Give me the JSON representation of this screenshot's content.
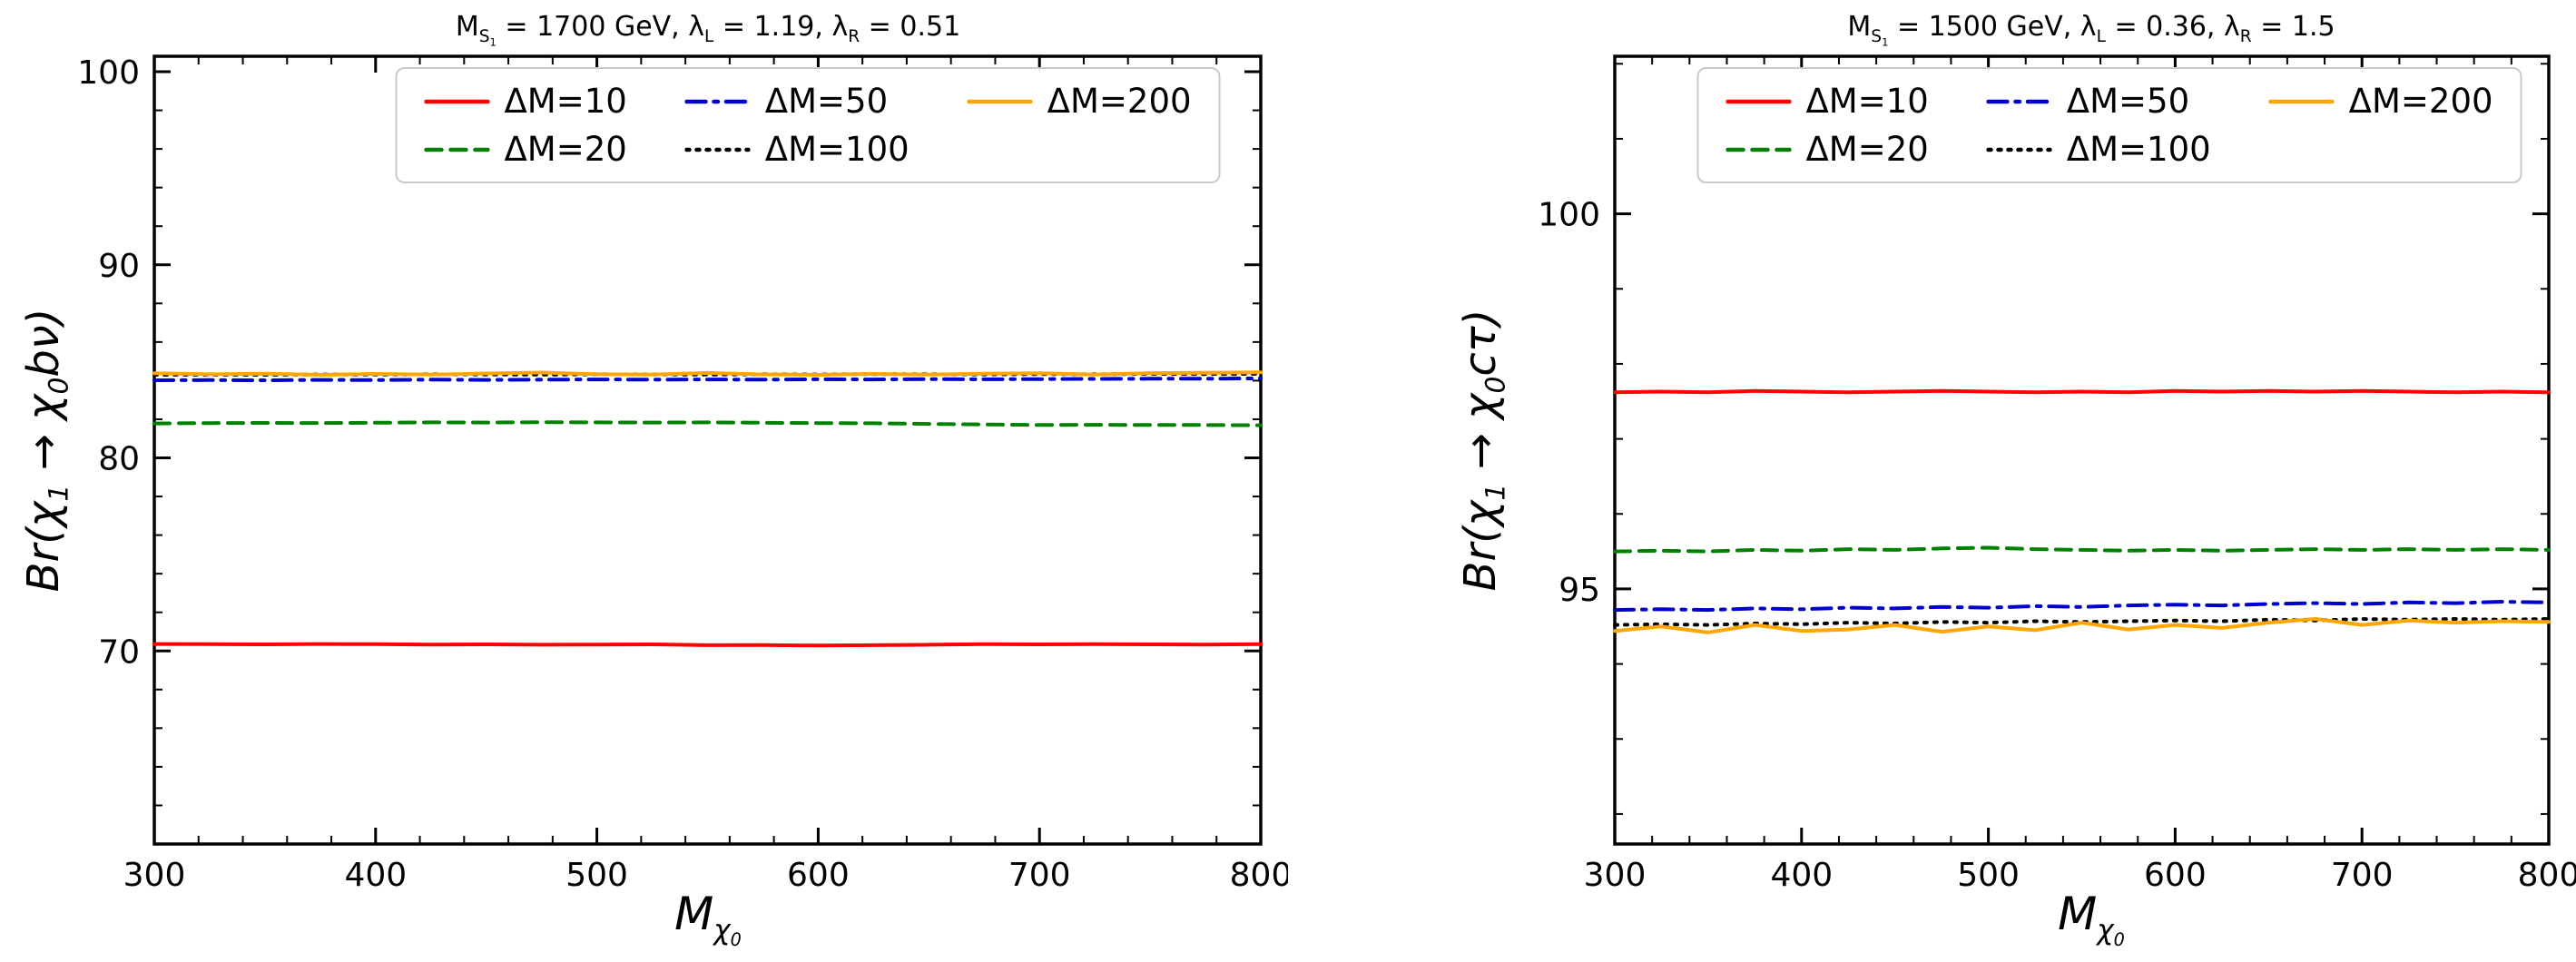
{
  "page": {
    "background": "#ffffff"
  },
  "chart_data": [
    {
      "type": "line",
      "title": "M_{S_{1}} = 1700 GeV,  λ_{L} = 1.19,  λ_{R} = 0.51",
      "xlabel": "M_{χ_{0}}",
      "ylabel": "Br(χ_{1} → χ_{0}bν)",
      "xlim": [
        300,
        800
      ],
      "ylim": [
        60.0,
        100.8
      ],
      "xticks": [
        300,
        400,
        500,
        600,
        700,
        800
      ],
      "yticks": [
        70,
        80,
        90,
        100
      ],
      "x_minor_step": 20,
      "y_minor_step": 2,
      "grid": false,
      "legend_position": "upper center",
      "x": [
        300,
        325,
        350,
        375,
        400,
        425,
        450,
        475,
        500,
        525,
        550,
        575,
        600,
        625,
        650,
        675,
        700,
        725,
        750,
        775,
        800
      ],
      "series": [
        {
          "name": "ΔM=10",
          "color": "#ff0000",
          "dash": "solid",
          "values": [
            70.36,
            70.35,
            70.34,
            70.36,
            70.35,
            70.33,
            70.34,
            70.32,
            70.33,
            70.34,
            70.3,
            70.31,
            70.28,
            70.3,
            70.32,
            70.35,
            70.34,
            70.35,
            70.34,
            70.33,
            70.35
          ]
        },
        {
          "name": "ΔM=20",
          "color": "#008000",
          "dash": "dashed",
          "values": [
            81.78,
            81.8,
            81.81,
            81.8,
            81.82,
            81.84,
            81.83,
            81.85,
            81.84,
            81.83,
            81.84,
            81.82,
            81.8,
            81.79,
            81.76,
            81.73,
            81.7,
            81.71,
            81.7,
            81.7,
            81.69
          ]
        },
        {
          "name": "ΔM=50",
          "color": "#0000cd",
          "dash": "dashdot",
          "values": [
            84.02,
            84.03,
            84.02,
            84.04,
            84.03,
            84.05,
            84.04,
            84.05,
            84.06,
            84.05,
            84.06,
            84.05,
            84.07,
            84.06,
            84.08,
            84.07,
            84.08,
            84.09,
            84.1,
            84.1,
            84.12
          ]
        },
        {
          "name": "ΔM=100",
          "color": "#000000",
          "dash": "dotted",
          "values": [
            84.3,
            84.31,
            84.3,
            84.32,
            84.31,
            84.33,
            84.32,
            84.31,
            84.33,
            84.32,
            84.31,
            84.33,
            84.32,
            84.34,
            84.33,
            84.32,
            84.34,
            84.33,
            84.35,
            84.34,
            84.35
          ]
        },
        {
          "name": "ΔM=200",
          "color": "#ffa500",
          "dash": "solid",
          "values": [
            84.38,
            84.33,
            84.36,
            84.3,
            84.35,
            84.31,
            84.37,
            84.42,
            84.33,
            84.31,
            84.4,
            84.32,
            84.3,
            84.35,
            84.31,
            84.36,
            84.38,
            84.31,
            84.39,
            84.41,
            84.43
          ]
        }
      ]
    },
    {
      "type": "line",
      "title": "M_{S_{1}} = 1500 GeV,  λ_{L} = 0.36,  λ_{R} = 1.5",
      "xlabel": "M_{χ_{0}}",
      "ylabel": "Br(χ_{1} → χ_{0}cτ)",
      "xlim": [
        300,
        800
      ],
      "ylim": [
        91.6,
        102.1
      ],
      "xticks": [
        300,
        400,
        500,
        600,
        700,
        800
      ],
      "yticks": [
        95,
        100
      ],
      "x_minor_step": 20,
      "y_minor_step": 1,
      "grid": false,
      "legend_position": "upper center",
      "x": [
        300,
        325,
        350,
        375,
        400,
        425,
        450,
        475,
        500,
        525,
        550,
        575,
        600,
        625,
        650,
        675,
        700,
        725,
        750,
        775,
        800
      ],
      "series": [
        {
          "name": "ΔM=10",
          "color": "#ff0000",
          "dash": "solid",
          "values": [
            97.62,
            97.63,
            97.62,
            97.64,
            97.63,
            97.62,
            97.63,
            97.64,
            97.63,
            97.62,
            97.63,
            97.62,
            97.64,
            97.63,
            97.64,
            97.63,
            97.64,
            97.63,
            97.62,
            97.63,
            97.62
          ]
        },
        {
          "name": "ΔM=20",
          "color": "#008000",
          "dash": "dashed",
          "values": [
            95.5,
            95.51,
            95.5,
            95.52,
            95.51,
            95.53,
            95.52,
            95.54,
            95.55,
            95.53,
            95.52,
            95.51,
            95.52,
            95.51,
            95.52,
            95.53,
            95.52,
            95.53,
            95.52,
            95.53,
            95.52
          ]
        },
        {
          "name": "ΔM=50",
          "color": "#0000cd",
          "dash": "dashdot",
          "values": [
            94.72,
            94.73,
            94.72,
            94.74,
            94.73,
            94.75,
            94.74,
            94.76,
            94.75,
            94.77,
            94.76,
            94.78,
            94.79,
            94.78,
            94.8,
            94.81,
            94.8,
            94.82,
            94.81,
            94.83,
            94.82
          ]
        },
        {
          "name": "ΔM=100",
          "color": "#000000",
          "dash": "dotted",
          "values": [
            94.52,
            94.53,
            94.52,
            94.54,
            94.53,
            94.55,
            94.54,
            94.56,
            94.55,
            94.57,
            94.56,
            94.57,
            94.58,
            94.57,
            94.59,
            94.58,
            94.6,
            94.59,
            94.6,
            94.59,
            94.6
          ]
        },
        {
          "name": "ΔM=200",
          "color": "#ffa500",
          "dash": "solid",
          "values": [
            94.44,
            94.5,
            94.42,
            94.52,
            94.44,
            94.46,
            94.52,
            94.43,
            94.5,
            94.45,
            94.55,
            94.46,
            94.52,
            94.48,
            94.55,
            94.6,
            94.52,
            94.58,
            94.55,
            94.57,
            94.56
          ]
        }
      ]
    }
  ]
}
